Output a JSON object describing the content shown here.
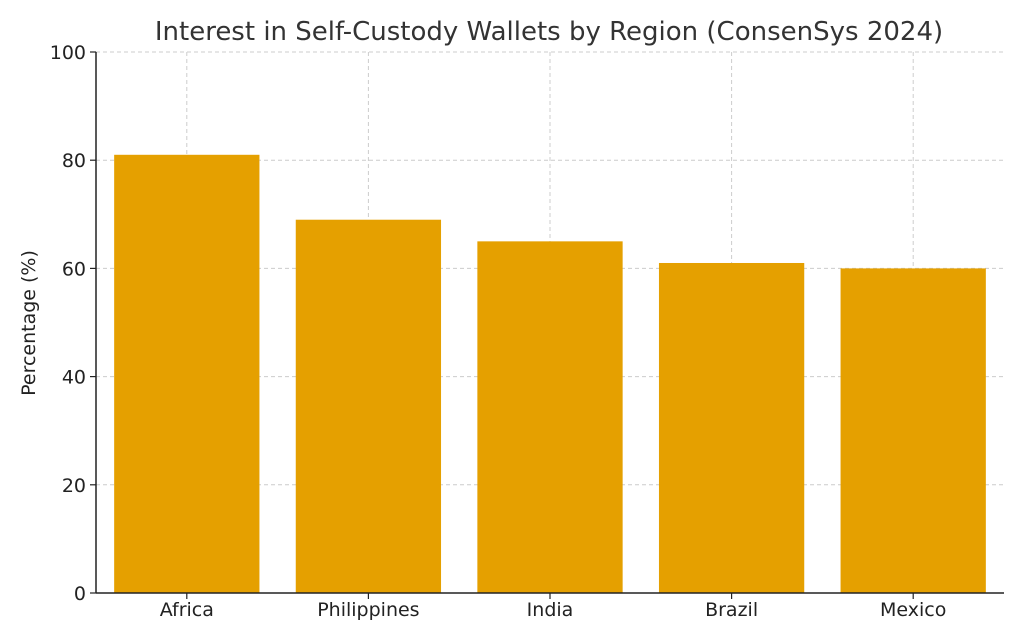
{
  "chart_data": {
    "type": "bar",
    "title": "Interest in Self-Custody Wallets by Region (ConsenSys 2024)",
    "xlabel": "",
    "ylabel": "Percentage (%)",
    "categories": [
      "Africa",
      "Philippines",
      "India",
      "Brazil",
      "Mexico"
    ],
    "values": [
      81,
      69,
      65,
      61,
      60
    ],
    "ylim": [
      0,
      100
    ],
    "yticks": [
      0,
      20,
      40,
      60,
      80,
      100
    ],
    "grid": true,
    "legend": "none",
    "colors": {
      "bar": "#e5a000"
    }
  }
}
